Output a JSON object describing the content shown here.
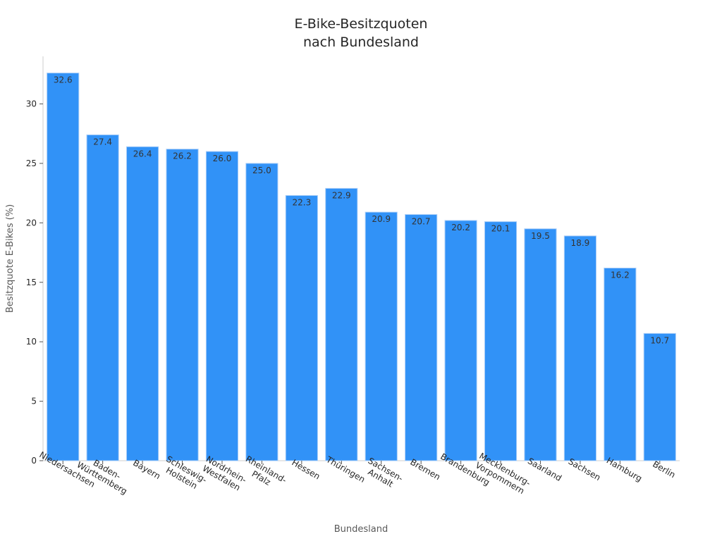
{
  "chart_data": {
    "type": "bar",
    "title_lines": [
      "E-Bike-Besitzquoten",
      "nach Bundesland"
    ],
    "xlabel": "Bundesland",
    "ylabel": "Besitzquote E-Bikes (%)",
    "ylim": [
      0,
      34
    ],
    "yticks": [
      0,
      5,
      10,
      15,
      20,
      25,
      30
    ],
    "grid": false,
    "categories": [
      [
        "Niedersachsen"
      ],
      [
        "Baden-",
        "Württemberg"
      ],
      [
        "Bayern"
      ],
      [
        "Schleswig-",
        "Holstein"
      ],
      [
        "Nordrhein-",
        "Westfalen"
      ],
      [
        "Rheinland-",
        "Pfalz"
      ],
      [
        "Hessen"
      ],
      [
        "Thüringen"
      ],
      [
        "Sachsen-",
        "Anhalt"
      ],
      [
        "Bremen"
      ],
      [
        "Brandenburg"
      ],
      [
        "Mecklenburg-",
        "Vorpommern"
      ],
      [
        "Saarland"
      ],
      [
        "Sachsen"
      ],
      [
        "Hamburg"
      ],
      [
        "Berlin"
      ]
    ],
    "values": [
      32.6,
      27.4,
      26.4,
      26.2,
      26.0,
      25.0,
      22.3,
      22.9,
      20.9,
      20.7,
      20.2,
      20.1,
      19.5,
      18.9,
      16.2,
      10.7
    ],
    "data_labels": [
      "32.6",
      "27.4",
      "26.4",
      "26.2",
      "26.0",
      "25.0",
      "22.3",
      "22.9",
      "20.9",
      "20.7",
      "20.2",
      "20.1",
      "19.5",
      "18.9",
      "16.2",
      "10.7"
    ],
    "bar_color": "#3192f7"
  }
}
